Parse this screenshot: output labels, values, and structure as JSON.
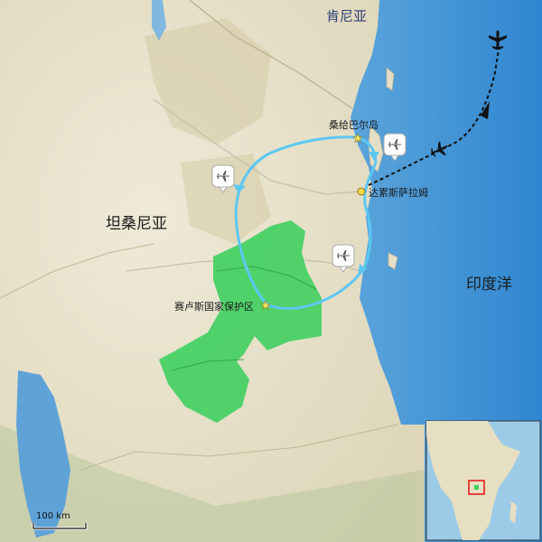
{
  "labels": {
    "kenya": "肯尼亚",
    "tanzania": "坦桑尼亚",
    "indian_ocean": "印度洋",
    "zanzibar": "桑给巴尔岛",
    "dar_es_salaam": "达累斯萨拉姆",
    "selous": "赛卢斯国家保护区"
  },
  "scale_bar": {
    "label": "100 km"
  },
  "colors": {
    "land": "#e9e4cf",
    "land_shade": "#d9d2b6",
    "ocean": "#8fc4e2",
    "ocean_deep": "#3f8fcf",
    "reserve": "#3fcf5f",
    "route": "#5cc8f2",
    "flight": "#111111"
  },
  "icons": [
    "airplane-icon",
    "airport-marker-icon",
    "star-icon"
  ]
}
